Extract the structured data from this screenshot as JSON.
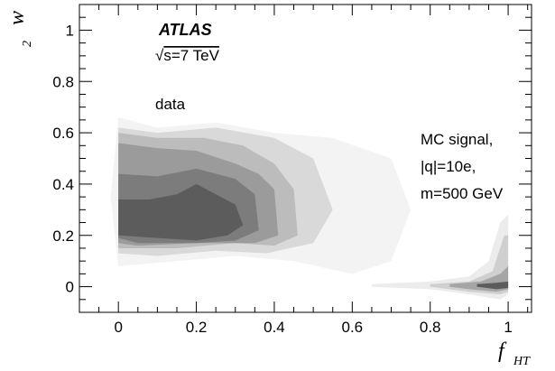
{
  "chart_data": {
    "type": "heatmap",
    "x_axis": {
      "label": "f",
      "label_subscript": "HT",
      "range": [
        -0.1,
        1.06
      ],
      "ticks": [
        0,
        0.2,
        0.4,
        0.6,
        0.8,
        1
      ],
      "tick_labels": [
        "0",
        "0.2",
        "0.4",
        "0.6",
        "0.8",
        "1"
      ]
    },
    "y_axis": {
      "label": "w",
      "label_subscript": "2",
      "range": [
        -0.1,
        1.1
      ],
      "ticks": [
        0,
        0.2,
        0.4,
        0.6,
        0.8,
        1
      ],
      "tick_labels": [
        "0",
        "0.2",
        "0.4",
        "0.6",
        "0.8",
        "1"
      ]
    },
    "experiment": "ATLAS",
    "energy_label": "s=7 TeV",
    "energy_sqrt_symbol": "√",
    "annotations": {
      "data": "data",
      "signal_line1": "MC signal,",
      "signal_line2": "|q|=10e,",
      "signal_line3": "m=500 GeV"
    },
    "regions": [
      {
        "name": "data",
        "contours": [
          {
            "level": 1,
            "color": "#f3f3f3",
            "x": [
              0,
              0.1,
              0.25,
              0.4,
              0.55,
              0.7,
              0.75,
              0.7,
              0.6,
              0.45,
              0.3,
              0.15,
              0,
              -0.02
            ],
            "y": [
              0.66,
              0.62,
              0.64,
              0.6,
              0.58,
              0.5,
              0.3,
              0.1,
              0.05,
              0.1,
              0.12,
              0.1,
              0.08,
              0.35
            ]
          },
          {
            "level": 2,
            "color": "#d9d9d9",
            "x": [
              0,
              0.1,
              0.25,
              0.4,
              0.5,
              0.55,
              0.5,
              0.38,
              0.25,
              0.1,
              0
            ],
            "y": [
              0.62,
              0.6,
              0.62,
              0.58,
              0.5,
              0.3,
              0.17,
              0.13,
              0.14,
              0.12,
              0.13
            ]
          },
          {
            "level": 3,
            "color": "#bcbcbc",
            "x": [
              0,
              0.1,
              0.22,
              0.32,
              0.4,
              0.45,
              0.46,
              0.4,
              0.3,
              0.15,
              0
            ],
            "y": [
              0.6,
              0.58,
              0.58,
              0.55,
              0.48,
              0.38,
              0.2,
              0.16,
              0.17,
              0.15,
              0.15
            ]
          },
          {
            "level": 4,
            "color": "#9b9b9b",
            "x": [
              0,
              0.1,
              0.2,
              0.3,
              0.36,
              0.4,
              0.41,
              0.35,
              0.2,
              0.05,
              0
            ],
            "y": [
              0.56,
              0.54,
              0.53,
              0.48,
              0.44,
              0.38,
              0.2,
              0.17,
              0.17,
              0.16,
              0.17
            ]
          },
          {
            "level": 5,
            "color": "#7c7c7c",
            "x": [
              0,
              0.1,
              0.2,
              0.3,
              0.35,
              0.36,
              0.3,
              0.2,
              0.05,
              0
            ],
            "y": [
              0.44,
              0.43,
              0.46,
              0.42,
              0.36,
              0.22,
              0.18,
              0.17,
              0.17,
              0.19
            ]
          },
          {
            "level": 6,
            "color": "#5c5c5c",
            "x": [
              0,
              0.08,
              0.15,
              0.2,
              0.25,
              0.3,
              0.32,
              0.28,
              0.2,
              0.1,
              0
            ],
            "y": [
              0.34,
              0.34,
              0.36,
              0.4,
              0.36,
              0.32,
              0.24,
              0.2,
              0.18,
              0.19,
              0.2
            ]
          }
        ]
      },
      {
        "name": "signal",
        "contours": [
          {
            "level": 1,
            "color": "#ececec",
            "x": [
              0.65,
              0.8,
              0.9,
              0.95,
              0.98,
              1.0,
              1.0,
              0.98,
              0.9,
              0.8,
              0.65
            ],
            "y": [
              0.01,
              0.02,
              0.04,
              0.1,
              0.25,
              0.28,
              -0.03,
              -0.05,
              -0.03,
              -0.01,
              0
            ]
          },
          {
            "level": 2,
            "color": "#cfcfcf",
            "x": [
              0.8,
              0.9,
              0.96,
              0.99,
              1.0,
              1.0,
              0.98,
              0.9,
              0.8
            ],
            "y": [
              0.01,
              0.02,
              0.06,
              0.2,
              0.2,
              -0.02,
              -0.03,
              -0.02,
              0
            ]
          },
          {
            "level": 3,
            "color": "#a5a5a5",
            "x": [
              0.85,
              0.93,
              0.98,
              1.0,
              1.0,
              0.97,
              0.9,
              0.85
            ],
            "y": [
              0.01,
              0.02,
              0.05,
              0.08,
              -0.01,
              -0.02,
              -0.01,
              0
            ]
          },
          {
            "level": 4,
            "color": "#5c5c5c",
            "x": [
              0.92,
              0.97,
              1.0,
              1.0,
              0.97,
              0.92
            ],
            "y": [
              0.01,
              0.015,
              0.02,
              -0.005,
              -0.01,
              0
            ]
          }
        ]
      }
    ],
    "grid": false,
    "legend": "none"
  }
}
